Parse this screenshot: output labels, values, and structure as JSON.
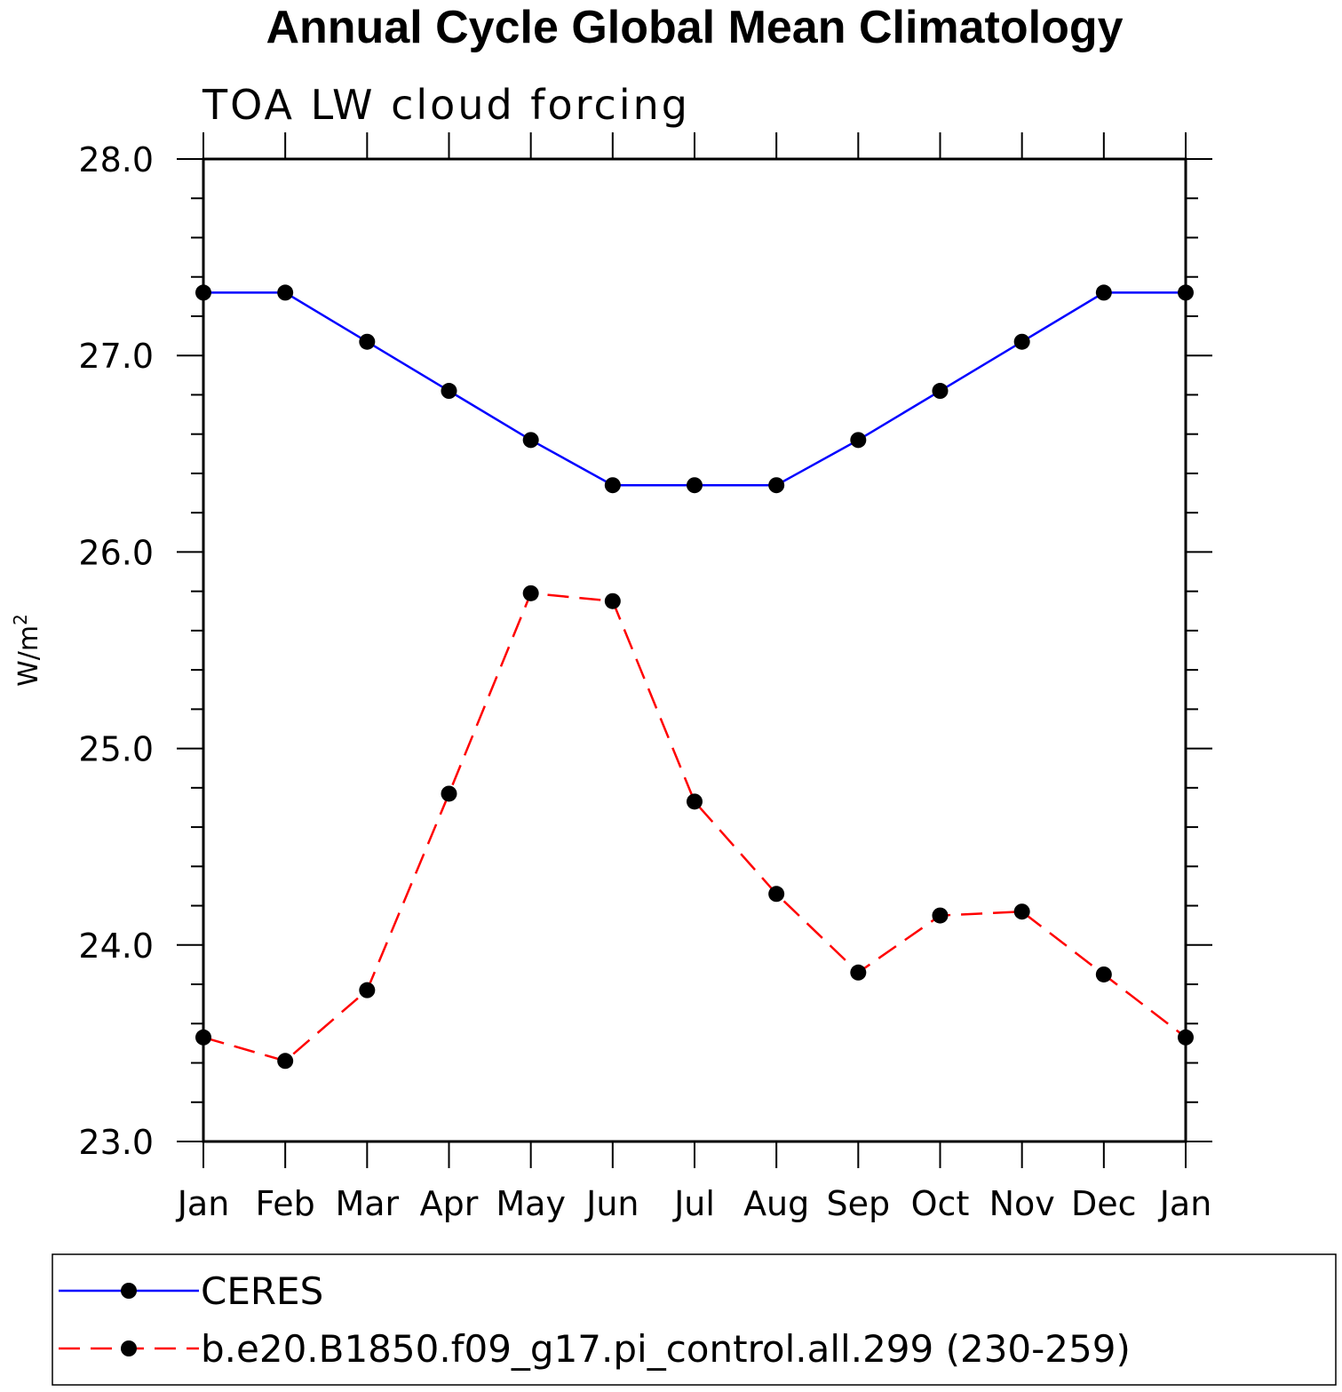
{
  "chart_data": {
    "type": "line",
    "title": "Annual Cycle Global Mean Climatology",
    "subtitle": "TOA LW cloud forcing",
    "ylabel": "W/m",
    "ylabel_superscript": "2",
    "xlabel": "",
    "categories": [
      "Jan",
      "Feb",
      "Mar",
      "Apr",
      "May",
      "Jun",
      "Jul",
      "Aug",
      "Sep",
      "Oct",
      "Nov",
      "Dec",
      "Jan"
    ],
    "ylim": [
      23.0,
      28.0
    ],
    "yticks": [
      23.0,
      24.0,
      25.0,
      26.0,
      27.0,
      28.0
    ],
    "ytick_labels": [
      "23.0",
      "24.0",
      "25.0",
      "26.0",
      "27.0",
      "28.0"
    ],
    "y_minor_step": 0.2,
    "grid": false,
    "legend_placement": "bottom",
    "series": [
      {
        "name": "CERES",
        "color": "#0000ff",
        "dash": "solid",
        "marker": "filled-circle",
        "values": [
          27.32,
          27.32,
          27.07,
          26.82,
          26.57,
          26.34,
          26.34,
          26.34,
          26.57,
          26.82,
          27.07,
          27.32,
          27.32
        ]
      },
      {
        "name": "b.e20.B1850.f09_g17.pi_control.all.299 (230-259)",
        "color": "#ff0000",
        "dash": "dashed",
        "marker": "filled-circle",
        "values": [
          23.53,
          23.41,
          23.77,
          24.77,
          25.79,
          25.75,
          24.73,
          24.26,
          23.86,
          24.15,
          24.17,
          23.85,
          23.53
        ]
      }
    ]
  }
}
